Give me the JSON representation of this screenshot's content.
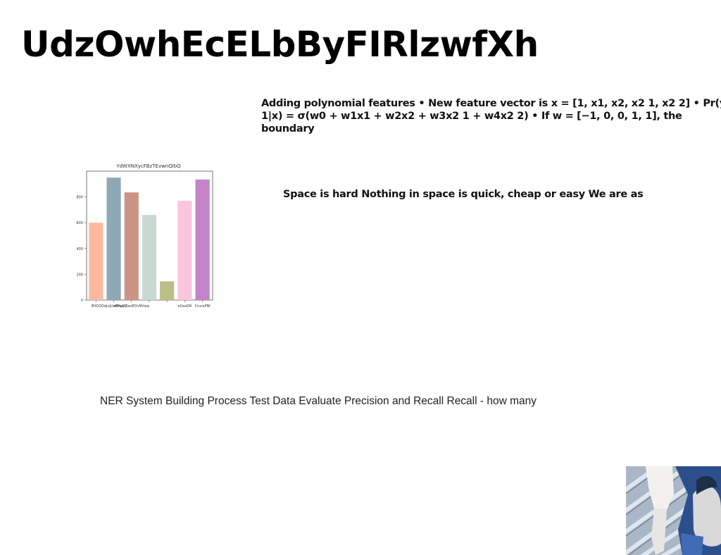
{
  "slide": {
    "title": "UdzOwhEcELbByFIRlzwfXh",
    "paragraph": "Adding polynomial features • New feature vector is x = [1, x1, x2, x2 1, x2 2] • Pr(y 1|x) = σ(w0 + w1x1 + w2x2 + w3x2 1 + w4x2 2) • If w = [−1, 0, 0, 1, 1], the boundary",
    "text_space": "Space is hard Nothing in space is quick, cheap or easy We are as",
    "text_ner": "NER System Building Process Test Data Evaluate Precision and Recall Recall - how many"
  },
  "chart_data": {
    "type": "bar",
    "title": "YdWXNXycFBzTEvwnQlbQ",
    "categories": [
      "lRlOC",
      "lOqLqUoSHgtcr",
      "eFnaVZwsEOcNVwq",
      "",
      "",
      "eUasDR",
      "CruraPNl"
    ],
    "values": [
      600,
      950,
      835,
      660,
      145,
      770,
      935
    ],
    "colors": [
      "#fdb9a0",
      "#8fa8b5",
      "#cc9485",
      "#c9d9d0",
      "#bac088",
      "#fbc5e0",
      "#c583c9"
    ],
    "ylim": [
      0,
      1000
    ],
    "yticks": [
      0,
      200,
      400,
      600,
      800
    ],
    "xlabel": "",
    "ylabel": "",
    "grid": false
  },
  "photo": {
    "icon": "photo-thumbnail"
  }
}
